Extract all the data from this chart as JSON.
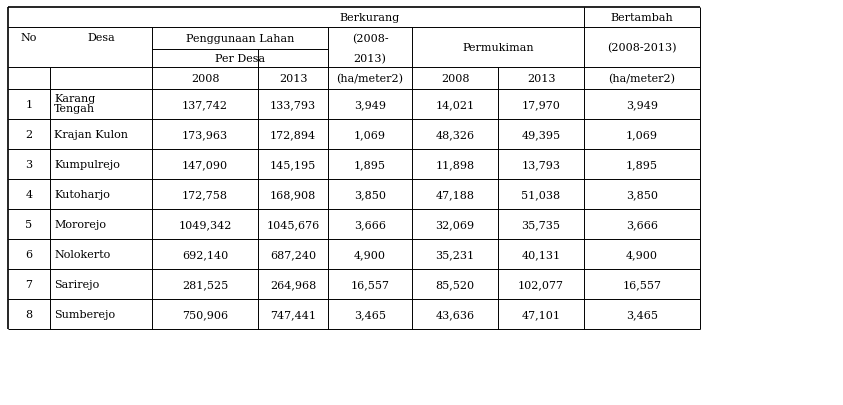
{
  "rows": [
    {
      "no": "1",
      "desa": "Karang\nTengah",
      "pl2008": "137,742",
      "pl2013": "133,793",
      "berkurang": "3,949",
      "pm2008": "14,021",
      "pm2013": "17,970",
      "bertambah": "3,949"
    },
    {
      "no": "2",
      "desa": "Krajan Kulon",
      "pl2008": "173,963",
      "pl2013": "172,894",
      "berkurang": "1,069",
      "pm2008": "48,326",
      "pm2013": "49,395",
      "bertambah": "1,069"
    },
    {
      "no": "3",
      "desa": "Kumpulrejo",
      "pl2008": "147,090",
      "pl2013": "145,195",
      "berkurang": "1,895",
      "pm2008": "11,898",
      "pm2013": "13,793",
      "bertambah": "1,895"
    },
    {
      "no": "4",
      "desa": "Kutoharjo",
      "pl2008": "172,758",
      "pl2013": "168,908",
      "berkurang": "3,850",
      "pm2008": "47,188",
      "pm2013": "51,038",
      "bertambah": "3,850"
    },
    {
      "no": "5",
      "desa": "Mororejo",
      "pl2008": "1049,342",
      "pl2013": "1045,676",
      "berkurang": "3,666",
      "pm2008": "32,069",
      "pm2013": "35,735",
      "bertambah": "3,666"
    },
    {
      "no": "6",
      "desa": "Nolokerto",
      "pl2008": "692,140",
      "pl2013": "687,240",
      "berkurang": "4,900",
      "pm2008": "35,231",
      "pm2013": "40,131",
      "bertambah": "4,900"
    },
    {
      "no": "7",
      "desa": "Sarirejo",
      "pl2008": "281,525",
      "pl2013": "264,968",
      "berkurang": "16,557",
      "pm2008": "85,520",
      "pm2013": "102,077",
      "bertambah": "16,557"
    },
    {
      "no": "8",
      "desa": "Sumberejo",
      "pl2008": "750,906",
      "pl2013": "747,441",
      "berkurang": "3,465",
      "pm2008": "43,636",
      "pm2013": "47,101",
      "bertambah": "3,465"
    }
  ],
  "font_size": 8.0,
  "bg_color": "#ffffff",
  "text_color": "#000000",
  "line_color": "#000000",
  "col_bounds": [
    8,
    50,
    152,
    258,
    328,
    412,
    498,
    584,
    700
  ],
  "row_tops": [
    8,
    28,
    50,
    68,
    90
  ],
  "data_row_heights": [
    44,
    30,
    30,
    30,
    30,
    30,
    30,
    30,
    30
  ]
}
